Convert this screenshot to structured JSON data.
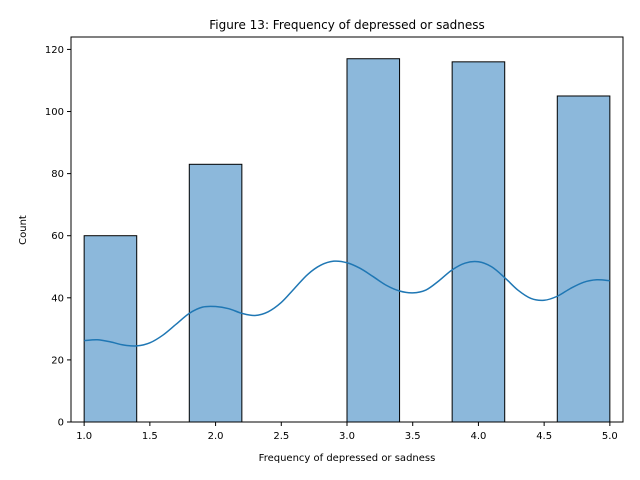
{
  "chart_data": {
    "type": "bar",
    "title": "Figure 13: Frequency of depressed or sadness",
    "xlabel": "Frequency of depressed or sadness",
    "ylabel": "Count",
    "xlim": [
      0.9,
      5.1
    ],
    "ylim": [
      0,
      124
    ],
    "xticks": [
      "1.0",
      "1.5",
      "2.0",
      "2.5",
      "3.0",
      "3.5",
      "4.0",
      "4.5",
      "5.0"
    ],
    "yticks": [
      "0",
      "20",
      "40",
      "60",
      "80",
      "100",
      "120"
    ],
    "bins": [
      {
        "x0": 1.0,
        "x1": 1.4,
        "value": 60
      },
      {
        "x0": 1.4,
        "x1": 1.8,
        "value": 0
      },
      {
        "x0": 1.8,
        "x1": 2.2,
        "value": 83
      },
      {
        "x0": 2.2,
        "x1": 2.6,
        "value": 0
      },
      {
        "x0": 2.6,
        "x1": 3.0,
        "value": 0
      },
      {
        "x0": 3.0,
        "x1": 3.4,
        "value": 117
      },
      {
        "x0": 3.4,
        "x1": 3.8,
        "value": 0
      },
      {
        "x0": 3.8,
        "x1": 4.2,
        "value": 116
      },
      {
        "x0": 4.2,
        "x1": 4.6,
        "value": 0
      },
      {
        "x0": 4.6,
        "x1": 5.0,
        "value": 105
      }
    ],
    "kde": {
      "x": [
        1.0,
        1.1,
        1.2,
        1.3,
        1.4,
        1.5,
        1.6,
        1.7,
        1.8,
        1.9,
        2.0,
        2.1,
        2.2,
        2.3,
        2.4,
        2.5,
        2.6,
        2.7,
        2.8,
        2.9,
        3.0,
        3.1,
        3.2,
        3.3,
        3.4,
        3.5,
        3.6,
        3.7,
        3.8,
        3.9,
        4.0,
        4.1,
        4.2,
        4.3,
        4.4,
        4.5,
        4.6,
        4.7,
        4.8,
        4.9,
        5.0
      ],
      "y": [
        26.2,
        26.5,
        25.8,
        24.8,
        24.5,
        25.5,
        28.0,
        31.5,
        35.0,
        37.0,
        37.2,
        36.5,
        35.0,
        34.3,
        35.5,
        38.5,
        43.0,
        47.5,
        50.5,
        51.8,
        51.3,
        49.5,
        46.8,
        44.0,
        42.2,
        41.6,
        42.5,
        45.5,
        49.0,
        51.2,
        51.6,
        50.0,
        46.5,
        42.5,
        39.8,
        39.2,
        40.5,
        43.0,
        45.0,
        45.8,
        45.5
      ]
    },
    "colors": {
      "bar_fill": "#8cb8db",
      "bar_edge": "#000000",
      "kde_line": "#1f77b4"
    },
    "grid": false,
    "legend": "none"
  }
}
